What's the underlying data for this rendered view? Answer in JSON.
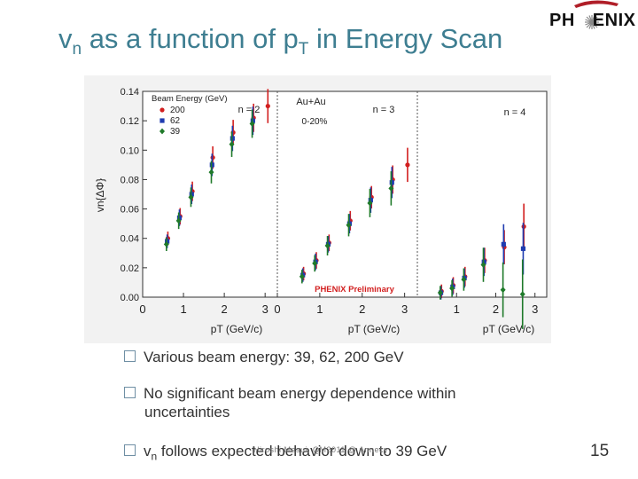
{
  "slide": {
    "title_main": "v",
    "title_sub": "n",
    "title_mid": " as a function of p",
    "title_sub2": "T",
    "title_end": " in Energy Scan",
    "logo_left": "PH",
    "logo_right": "ENIX",
    "page_number": "15",
    "footer": "Hiroshi Masui, QM2011 @ Annecy"
  },
  "bullets": [
    {
      "text": "Various beam energy: 39, 62, 200 GeV"
    },
    {
      "text": "No significant beam energy dependence within",
      "cont": "uncertainties"
    },
    {
      "text_a": "v",
      "text_sub": "n",
      "text_b": " follows expected behavior down to 39 GeV"
    }
  ],
  "chart_data": {
    "type": "scatter",
    "ylabel": "vn{ΔΦ}",
    "xlabel": "pT (GeV/c)",
    "ylim": [
      0,
      0.14
    ],
    "yticks": [
      "0.00",
      "0.02",
      "0.04",
      "0.06",
      "0.08",
      "0.10",
      "0.12",
      "0.14"
    ],
    "legend_title": "Beam Energy (GeV)",
    "legend_entries": [
      "200",
      "62",
      "39"
    ],
    "colors": {
      "200": "#d21f1f",
      "62": "#1f3cb0",
      "39": "#1f7a2a"
    },
    "system_label": "Au+Au",
    "centrality_label": "0-20%",
    "preliminary_label": "PHENIX Preliminary",
    "panels": [
      {
        "label": "n = 2",
        "xlim": [
          0,
          3.3
        ],
        "xticks": [
          "0",
          "1",
          "2",
          "3"
        ],
        "series": [
          {
            "name": "200",
            "points": [
              [
                0.65,
                0.04,
                0.001
              ],
              [
                0.95,
                0.055,
                0.002
              ],
              [
                1.25,
                0.072,
                0.003
              ],
              [
                1.75,
                0.095,
                0.004
              ],
              [
                2.25,
                0.112,
                0.005
              ],
              [
                2.75,
                0.122,
                0.006
              ],
              [
                3.1,
                0.13,
                0.008
              ]
            ]
          },
          {
            "name": "62",
            "points": [
              [
                0.6,
                0.038,
                0.001
              ],
              [
                0.9,
                0.054,
                0.002
              ],
              [
                1.2,
                0.07,
                0.003
              ],
              [
                1.7,
                0.09,
                0.004
              ],
              [
                2.2,
                0.108,
                0.005
              ],
              [
                2.7,
                0.12,
                0.006
              ]
            ]
          },
          {
            "name": "39",
            "points": [
              [
                0.55,
                0.036,
                0.001
              ],
              [
                0.85,
                0.052,
                0.002
              ],
              [
                1.15,
                0.068,
                0.003
              ],
              [
                1.65,
                0.085,
                0.004
              ],
              [
                2.15,
                0.104,
                0.005
              ],
              [
                2.65,
                0.118,
                0.006
              ]
            ]
          }
        ]
      },
      {
        "label": "n = 3",
        "xlim": [
          0,
          3.3
        ],
        "xticks": [
          "0",
          "1",
          "2",
          "3"
        ],
        "series": [
          {
            "name": "200",
            "points": [
              [
                0.65,
                0.016,
                0.001
              ],
              [
                0.95,
                0.025,
                0.002
              ],
              [
                1.25,
                0.037,
                0.002
              ],
              [
                1.75,
                0.052,
                0.003
              ],
              [
                2.25,
                0.068,
                0.004
              ],
              [
                2.75,
                0.08,
                0.006
              ],
              [
                3.1,
                0.09,
                0.008
              ]
            ]
          },
          {
            "name": "62",
            "points": [
              [
                0.6,
                0.015,
                0.001
              ],
              [
                0.9,
                0.024,
                0.002
              ],
              [
                1.2,
                0.036,
                0.002
              ],
              [
                1.7,
                0.05,
                0.003
              ],
              [
                2.2,
                0.066,
                0.005
              ],
              [
                2.7,
                0.078,
                0.007
              ]
            ]
          },
          {
            "name": "39",
            "points": [
              [
                0.55,
                0.014,
                0.001
              ],
              [
                0.85,
                0.023,
                0.002
              ],
              [
                1.15,
                0.035,
                0.003
              ],
              [
                1.65,
                0.049,
                0.004
              ],
              [
                2.15,
                0.064,
                0.006
              ],
              [
                2.65,
                0.074,
                0.008
              ]
            ]
          }
        ]
      },
      {
        "label": "n = 4",
        "xlim": [
          0,
          3.3
        ],
        "xticks": [
          "1",
          "2",
          "3"
        ],
        "series": [
          {
            "name": "200",
            "points": [
              [
                0.65,
                0.004,
                0.001
              ],
              [
                0.95,
                0.008,
                0.002
              ],
              [
                1.25,
                0.014,
                0.003
              ],
              [
                1.75,
                0.025,
                0.005
              ],
              [
                2.25,
                0.034,
                0.008
              ],
              [
                2.75,
                0.048,
                0.012
              ]
            ]
          },
          {
            "name": "62",
            "points": [
              [
                0.6,
                0.003,
                0.001
              ],
              [
                0.9,
                0.007,
                0.002
              ],
              [
                1.2,
                0.013,
                0.003
              ],
              [
                1.7,
                0.024,
                0.006
              ],
              [
                2.2,
                0.036,
                0.01
              ],
              [
                2.7,
                0.033,
                0.014
              ]
            ]
          },
          {
            "name": "39",
            "points": [
              [
                0.55,
                0.003,
                0.001
              ],
              [
                0.85,
                0.006,
                0.002
              ],
              [
                1.15,
                0.012,
                0.004
              ],
              [
                1.65,
                0.022,
                0.008
              ],
              [
                2.15,
                0.005,
                0.015
              ],
              [
                2.65,
                0.002,
                0.02
              ]
            ]
          }
        ]
      }
    ]
  }
}
